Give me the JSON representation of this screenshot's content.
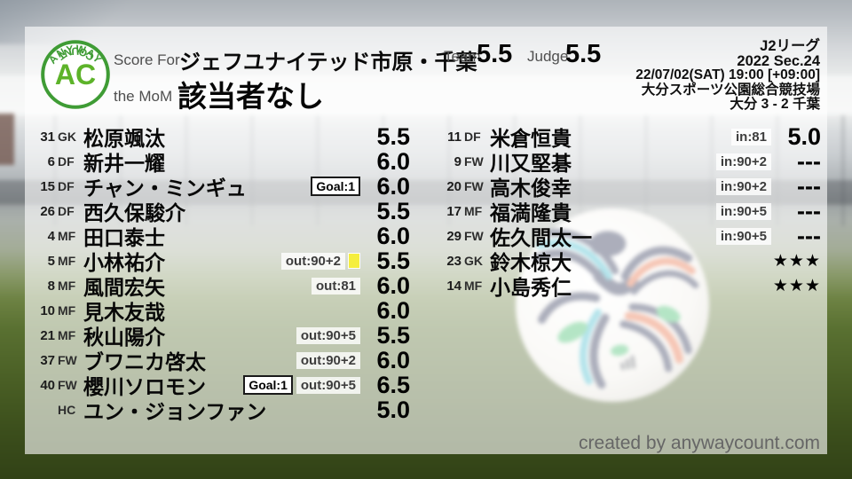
{
  "logo": {
    "arc_top": "ANYWAY",
    "initials": "AC",
    "arc_bottom": "COUNT"
  },
  "header": {
    "score_for_label": "Score For",
    "team_name": "ジェフユナイテッド市原・千葉",
    "mom_label": "the MoM",
    "mom_value": "該当者なし",
    "team_label": "Team",
    "team_score": "5.5",
    "judge_label": "Judge",
    "judge_score": "5.5"
  },
  "match_info": {
    "lines": [
      "J2リーグ",
      "2022 Sec.24",
      "22/07/02(SAT) 19:00 [+09:00]",
      "大分スポーツ公園総合競技場",
      "大分 3 - 2 千葉"
    ]
  },
  "columns": {
    "left": {
      "players": [
        {
          "number": "31",
          "pos": "GK",
          "name": "松原颯汰",
          "goal": "",
          "sub": "",
          "card": false,
          "rating": "5.5"
        },
        {
          "number": "6",
          "pos": "DF",
          "name": "新井一耀",
          "goal": "",
          "sub": "",
          "card": false,
          "rating": "6.0"
        },
        {
          "number": "15",
          "pos": "DF",
          "name": "チャン・ミンギュ",
          "goal": "Goal:1",
          "sub": "",
          "card": false,
          "rating": "6.0"
        },
        {
          "number": "26",
          "pos": "DF",
          "name": "西久保駿介",
          "goal": "",
          "sub": "",
          "card": false,
          "rating": "5.5"
        },
        {
          "number": "4",
          "pos": "MF",
          "name": "田口泰士",
          "goal": "",
          "sub": "",
          "card": false,
          "rating": "6.0"
        },
        {
          "number": "5",
          "pos": "MF",
          "name": "小林祐介",
          "goal": "",
          "sub": "out:90+2",
          "card": true,
          "rating": "5.5"
        },
        {
          "number": "8",
          "pos": "MF",
          "name": "風間宏矢",
          "goal": "",
          "sub": "out:81",
          "card": false,
          "rating": "6.0"
        },
        {
          "number": "10",
          "pos": "MF",
          "name": "見木友哉",
          "goal": "",
          "sub": "",
          "card": false,
          "rating": "6.0"
        },
        {
          "number": "21",
          "pos": "MF",
          "name": "秋山陽介",
          "goal": "",
          "sub": "out:90+5",
          "card": false,
          "rating": "5.5"
        },
        {
          "number": "37",
          "pos": "FW",
          "name": "ブワニカ啓太",
          "goal": "",
          "sub": "out:90+2",
          "card": false,
          "rating": "6.0"
        },
        {
          "number": "40",
          "pos": "FW",
          "name": "櫻川ソロモン",
          "goal": "Goal:1",
          "sub": "out:90+5",
          "card": false,
          "rating": "6.5"
        },
        {
          "number": "",
          "pos": "HC",
          "name": "ユン・ジョンファン",
          "goal": "",
          "sub": "",
          "card": false,
          "rating": "5.0"
        }
      ]
    },
    "right": {
      "players": [
        {
          "number": "11",
          "pos": "DF",
          "name": "米倉恒貴",
          "goal": "",
          "sub": "in:81",
          "card": false,
          "rating": "5.0"
        },
        {
          "number": "9",
          "pos": "FW",
          "name": "川又堅碁",
          "goal": "",
          "sub": "in:90+2",
          "card": false,
          "rating": "---"
        },
        {
          "number": "20",
          "pos": "FW",
          "name": "高木俊幸",
          "goal": "",
          "sub": "in:90+2",
          "card": false,
          "rating": "---"
        },
        {
          "number": "17",
          "pos": "MF",
          "name": "福満隆貴",
          "goal": "",
          "sub": "in:90+5",
          "card": false,
          "rating": "---"
        },
        {
          "number": "29",
          "pos": "FW",
          "name": "佐久間太一",
          "goal": "",
          "sub": "in:90+5",
          "card": false,
          "rating": "---"
        },
        {
          "number": "23",
          "pos": "GK",
          "name": "鈴木椋大",
          "goal": "",
          "sub": "",
          "card": false,
          "rating": "★★★"
        },
        {
          "number": "14",
          "pos": "MF",
          "name": "小島秀仁",
          "goal": "",
          "sub": "",
          "card": false,
          "rating": "★★★"
        }
      ]
    }
  },
  "footer": {
    "credit": "created by anywaycount.com"
  },
  "colors": {
    "logo_green": "#3f9c35",
    "logo_initials_green": "#5db32a",
    "yellow_card": "#f5ee3d",
    "ball_navy": "#252c4e",
    "ball_teal": "#3ab8cb",
    "ball_orange": "#e66a3e",
    "ball_green": "#3cbc68"
  }
}
